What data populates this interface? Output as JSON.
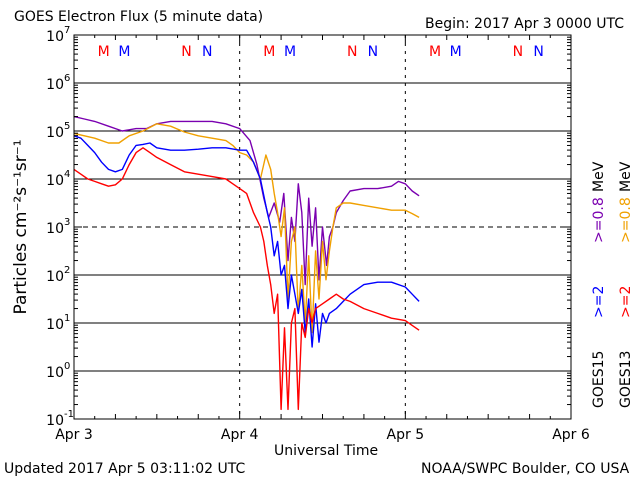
{
  "header": {
    "title": "GOES Electron Flux (5 minute data)",
    "begin": "Begin: 2017 Apr 3 0000 UTC"
  },
  "footer": {
    "updated": "Updated 2017 Apr  5 03:11:02 UTC",
    "credit": "NOAA/SWPC Boulder, CO USA"
  },
  "colors": {
    "goes15_gt2": "#0000ff",
    "goes13_gt2": "#ff0000",
    "goes15_gt08": "#7a00b0",
    "goes13_gt08": "#f0a000",
    "red_marker": "#ff0000",
    "blue_marker": "#0000ff"
  },
  "chart_data": {
    "type": "line",
    "title": "GOES Electron Flux (5 minute data)",
    "xlabel": "Universal Time",
    "ylabel": "Particles cm⁻²s⁻¹sr⁻¹",
    "xlim": [
      0,
      72
    ],
    "x_unit": "hours since 2017 Apr 3 0000 UTC",
    "ylim_exp": [
      -1,
      7
    ],
    "yscale": "log",
    "x_ticks": [
      {
        "x": 0,
        "label": "Apr 3"
      },
      {
        "x": 24,
        "label": "Apr 4"
      },
      {
        "x": 48,
        "label": "Apr 5"
      },
      {
        "x": 72,
        "label": "Apr 6"
      }
    ],
    "y_ticks": [
      {
        "exp": 7,
        "base": "10",
        "sup": "7"
      },
      {
        "exp": 6,
        "base": "10",
        "sup": "6"
      },
      {
        "exp": 5,
        "base": "10",
        "sup": "5"
      },
      {
        "exp": 4,
        "base": "10",
        "sup": "4"
      },
      {
        "exp": 3,
        "base": "10",
        "sup": "3"
      },
      {
        "exp": 2,
        "base": "10",
        "sup": "2"
      },
      {
        "exp": 1,
        "base": "10",
        "sup": "1"
      },
      {
        "exp": 0,
        "base": "10",
        "sup": "0"
      },
      {
        "exp": -1,
        "base": "10",
        "sup": "-1"
      }
    ],
    "threshold_exp": 3,
    "markers": [
      {
        "x": 4.3,
        "label": "M",
        "color": "red"
      },
      {
        "x": 7.3,
        "label": "M",
        "color": "blue"
      },
      {
        "x": 16.3,
        "label": "N",
        "color": "red"
      },
      {
        "x": 19.3,
        "label": "N",
        "color": "blue"
      },
      {
        "x": 28.3,
        "label": "M",
        "color": "red"
      },
      {
        "x": 31.3,
        "label": "M",
        "color": "blue"
      },
      {
        "x": 40.3,
        "label": "N",
        "color": "red"
      },
      {
        "x": 43.3,
        "label": "N",
        "color": "blue"
      },
      {
        "x": 52.3,
        "label": "M",
        "color": "red"
      },
      {
        "x": 55.3,
        "label": "M",
        "color": "blue"
      },
      {
        "x": 64.3,
        "label": "N",
        "color": "red"
      },
      {
        "x": 67.3,
        "label": "N",
        "color": "blue"
      }
    ],
    "legend": {
      "goes13": "GOES13",
      "goes15": "GOES15",
      "gt2": ">=2",
      "gt08": ">=0.8",
      "unit": "MeV"
    },
    "series": [
      {
        "name": "GOES15 >=0.8 MeV",
        "color": "#7a00b0",
        "points": [
          [
            0,
            5.3
          ],
          [
            1.5,
            5.25
          ],
          [
            3,
            5.2
          ],
          [
            5,
            5.1
          ],
          [
            7,
            5.0
          ],
          [
            9,
            5.05
          ],
          [
            10.5,
            5.05
          ],
          [
            12,
            5.15
          ],
          [
            14,
            5.2
          ],
          [
            16,
            5.2
          ],
          [
            18,
            5.2
          ],
          [
            20,
            5.2
          ],
          [
            22,
            5.15
          ],
          [
            24,
            5.05
          ],
          [
            25.5,
            4.8
          ],
          [
            26.5,
            4.3
          ],
          [
            27.5,
            3.6
          ],
          [
            28.2,
            3.2
          ],
          [
            29,
            3.5
          ],
          [
            29.8,
            3.1
          ],
          [
            30.4,
            3.7
          ],
          [
            31.0,
            2.3
          ],
          [
            31.5,
            3.2
          ],
          [
            32,
            2.7
          ],
          [
            32.5,
            3.9
          ],
          [
            33.0,
            3.3
          ],
          [
            33.5,
            1.8
          ],
          [
            34.0,
            3.6
          ],
          [
            34.5,
            2.6
          ],
          [
            35.0,
            3.4
          ],
          [
            35.5,
            1.9
          ],
          [
            36.0,
            3.0
          ],
          [
            36.6,
            2.2
          ],
          [
            37,
            2.8
          ],
          [
            37.5,
            3.0
          ],
          [
            38,
            3.3
          ],
          [
            39,
            3.55
          ],
          [
            40,
            3.75
          ],
          [
            42,
            3.8
          ],
          [
            44,
            3.8
          ],
          [
            46,
            3.85
          ],
          [
            47,
            3.95
          ],
          [
            48,
            3.9
          ],
          [
            49,
            3.75
          ],
          [
            50,
            3.65
          ]
        ]
      },
      {
        "name": "GOES13 >=0.8 MeV",
        "color": "#f0a000",
        "points": [
          [
            0,
            4.95
          ],
          [
            1.5,
            4.9
          ],
          [
            3,
            4.85
          ],
          [
            5,
            4.75
          ],
          [
            6.5,
            4.75
          ],
          [
            8,
            4.9
          ],
          [
            10,
            5.0
          ],
          [
            12,
            5.15
          ],
          [
            14,
            5.1
          ],
          [
            16,
            4.98
          ],
          [
            18,
            4.9
          ],
          [
            20,
            4.85
          ],
          [
            22,
            4.8
          ],
          [
            23,
            4.7
          ],
          [
            24,
            4.55
          ],
          [
            25,
            4.5
          ],
          [
            26,
            4.35
          ],
          [
            27,
            4.0
          ],
          [
            27.8,
            4.5
          ],
          [
            28.5,
            4.2
          ],
          [
            29,
            3.7
          ],
          [
            29.5,
            3.3
          ],
          [
            30,
            2.8
          ],
          [
            30.5,
            3.4
          ],
          [
            31,
            1.5
          ],
          [
            31.5,
            2.7
          ],
          [
            32,
            3.0
          ],
          [
            32.5,
            1.2
          ],
          [
            33,
            2.2
          ],
          [
            33.5,
            1.0
          ],
          [
            34,
            2.4
          ],
          [
            34.5,
            0.8
          ],
          [
            35,
            2.5
          ],
          [
            35.5,
            1.5
          ],
          [
            36,
            2.7
          ],
          [
            36.5,
            1.9
          ],
          [
            37,
            2.5
          ],
          [
            37.5,
            3.0
          ],
          [
            38,
            3.4
          ],
          [
            39,
            3.5
          ],
          [
            40,
            3.5
          ],
          [
            42,
            3.45
          ],
          [
            44,
            3.4
          ],
          [
            46,
            3.35
          ],
          [
            48,
            3.35
          ],
          [
            49,
            3.28
          ],
          [
            50,
            3.2
          ]
        ]
      },
      {
        "name": "GOES15 >=2 MeV",
        "color": "#0000ff",
        "points": [
          [
            0,
            4.9
          ],
          [
            1,
            4.85
          ],
          [
            2,
            4.7
          ],
          [
            3,
            4.55
          ],
          [
            4,
            4.35
          ],
          [
            5,
            4.2
          ],
          [
            6,
            4.15
          ],
          [
            7,
            4.2
          ],
          [
            8,
            4.5
          ],
          [
            9,
            4.7
          ],
          [
            10,
            4.72
          ],
          [
            11,
            4.75
          ],
          [
            12,
            4.65
          ],
          [
            14,
            4.6
          ],
          [
            16,
            4.6
          ],
          [
            18,
            4.62
          ],
          [
            20,
            4.65
          ],
          [
            22,
            4.65
          ],
          [
            24,
            4.6
          ],
          [
            25,
            4.6
          ],
          [
            26,
            4.35
          ],
          [
            27,
            4.0
          ],
          [
            28,
            3.3
          ],
          [
            28.5,
            3.0
          ],
          [
            29,
            2.4
          ],
          [
            29.5,
            2.7
          ],
          [
            30,
            2.0
          ],
          [
            30.5,
            2.2
          ],
          [
            31,
            1.3
          ],
          [
            31.5,
            2.0
          ],
          [
            32,
            1.6
          ],
          [
            32.5,
            1.2
          ],
          [
            33,
            1.7
          ],
          [
            33.5,
            0.8
          ],
          [
            34,
            1.5
          ],
          [
            34.5,
            0.5
          ],
          [
            35,
            1.4
          ],
          [
            35.5,
            0.6
          ],
          [
            36,
            1.2
          ],
          [
            36.5,
            1.0
          ],
          [
            37,
            1.2
          ],
          [
            38,
            1.3
          ],
          [
            39,
            1.45
          ],
          [
            40,
            1.6
          ],
          [
            42,
            1.8
          ],
          [
            44,
            1.85
          ],
          [
            46,
            1.85
          ],
          [
            48,
            1.75
          ],
          [
            49,
            1.6
          ],
          [
            50,
            1.45
          ]
        ]
      },
      {
        "name": "GOES13 >=2 MeV",
        "color": "#ff0000",
        "points": [
          [
            0,
            4.2
          ],
          [
            1,
            4.1
          ],
          [
            2,
            4.0
          ],
          [
            3,
            3.95
          ],
          [
            4,
            3.9
          ],
          [
            5,
            3.85
          ],
          [
            6,
            3.88
          ],
          [
            7,
            4.0
          ],
          [
            8,
            4.3
          ],
          [
            9,
            4.55
          ],
          [
            10,
            4.65
          ],
          [
            11,
            4.55
          ],
          [
            12,
            4.45
          ],
          [
            14,
            4.3
          ],
          [
            16,
            4.15
          ],
          [
            18,
            4.1
          ],
          [
            20,
            4.05
          ],
          [
            22,
            4.0
          ],
          [
            23,
            3.9
          ],
          [
            24,
            3.8
          ],
          [
            25,
            3.7
          ],
          [
            26,
            3.3
          ],
          [
            27,
            3.0
          ],
          [
            27.5,
            2.7
          ],
          [
            28,
            2.2
          ],
          [
            28.5,
            1.8
          ],
          [
            29,
            1.2
          ],
          [
            29.5,
            1.6
          ],
          [
            30,
            -0.8
          ],
          [
            30.5,
            0.9
          ],
          [
            31,
            -0.8
          ],
          [
            31.5,
            1.0
          ],
          [
            32,
            1.3
          ],
          [
            32.5,
            -0.8
          ],
          [
            33,
            1.0
          ],
          [
            33.5,
            0.7
          ],
          [
            34,
            1.3
          ],
          [
            34.5,
            1.0
          ],
          [
            35,
            1.3
          ],
          [
            36,
            1.4
          ],
          [
            37,
            1.5
          ],
          [
            38,
            1.6
          ],
          [
            39,
            1.5
          ],
          [
            40,
            1.45
          ],
          [
            42,
            1.3
          ],
          [
            44,
            1.2
          ],
          [
            46,
            1.1
          ],
          [
            48,
            1.05
          ],
          [
            49,
            0.95
          ],
          [
            50,
            0.85
          ]
        ]
      }
    ]
  }
}
